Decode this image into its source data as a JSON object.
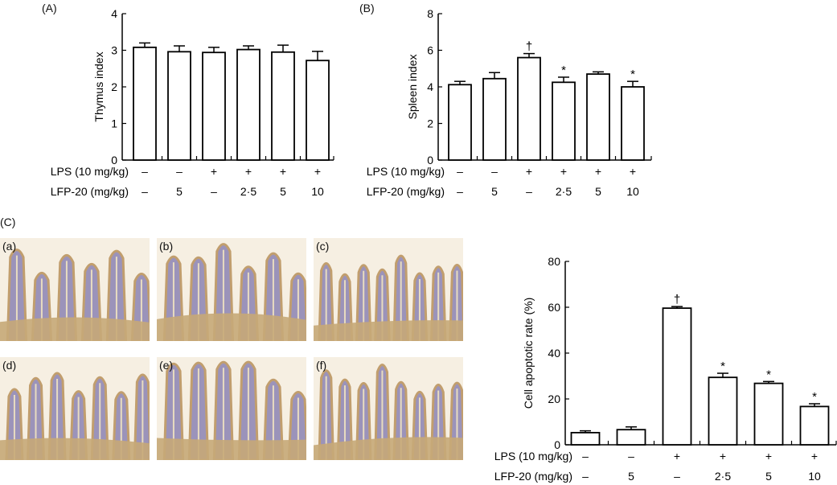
{
  "panels": {
    "A": "(A)",
    "B": "(B)",
    "C": "(C)"
  },
  "micrographs": [
    {
      "label": "(a)"
    },
    {
      "label": "(b)"
    },
    {
      "label": "(c)"
    },
    {
      "label": "(d)"
    },
    {
      "label": "(e)"
    },
    {
      "label": "(f)"
    }
  ],
  "colors": {
    "bar_fill": "#ffffff",
    "bar_stroke": "#000000",
    "tissue_purple": "#8c84b4",
    "tissue_brown": "#b8905a",
    "background": "#f6efe2"
  },
  "chart_data": [
    {
      "type": "bar",
      "title": "",
      "ylabel": "Thymus index",
      "ylim": [
        0,
        4
      ],
      "yticks": [
        "0",
        "1",
        "2",
        "3",
        "4"
      ],
      "row_labels": [
        "LPS (10 mg/kg)",
        "LFP-20 (mg/kg)"
      ],
      "lps": [
        "–",
        "–",
        "+",
        "+",
        "+",
        "+"
      ],
      "lfp": [
        "–",
        "5",
        "–",
        "2·5",
        "5",
        "10"
      ],
      "values": [
        3.08,
        2.96,
        2.94,
        3.02,
        2.95,
        2.72
      ],
      "errors": [
        0.12,
        0.16,
        0.14,
        0.1,
        0.19,
        0.25
      ],
      "annotations": [
        "",
        "",
        "",
        "",
        "",
        ""
      ]
    },
    {
      "type": "bar",
      "title": "",
      "ylabel": "Spleen index",
      "ylim": [
        0,
        8
      ],
      "yticks": [
        "0",
        "2",
        "4",
        "6",
        "8"
      ],
      "row_labels": [
        "LPS (10 mg/kg)",
        "LFP-20 (mg/kg)"
      ],
      "lps": [
        "–",
        "–",
        "+",
        "+",
        "+",
        "+"
      ],
      "lfp": [
        "–",
        "5",
        "–",
        "2·5",
        "5",
        "10"
      ],
      "values": [
        4.12,
        4.45,
        5.6,
        4.25,
        4.7,
        4.0
      ],
      "errors": [
        0.18,
        0.33,
        0.22,
        0.28,
        0.12,
        0.3
      ],
      "annotations": [
        "",
        "",
        "†",
        "*",
        "",
        "*"
      ]
    },
    {
      "type": "bar",
      "title": "",
      "ylabel": "Cell apoptotic rate (%)",
      "ylim": [
        0,
        80
      ],
      "yticks": [
        "0",
        "20",
        "40",
        "60",
        "80"
      ],
      "row_labels": [
        "LPS (10 mg/kg)",
        "LFP-20 (mg/kg)"
      ],
      "lps": [
        "–",
        "–",
        "+",
        "+",
        "+",
        "+"
      ],
      "lfp": [
        "–",
        "5",
        "–",
        "2·5",
        "5",
        "10"
      ],
      "values": [
        5.3,
        6.6,
        59.6,
        29.4,
        26.8,
        16.7
      ],
      "errors": [
        0.8,
        1.2,
        0.7,
        1.8,
        0.8,
        1.2
      ],
      "annotations": [
        "",
        "",
        "†",
        "*",
        "*",
        "*"
      ]
    }
  ]
}
